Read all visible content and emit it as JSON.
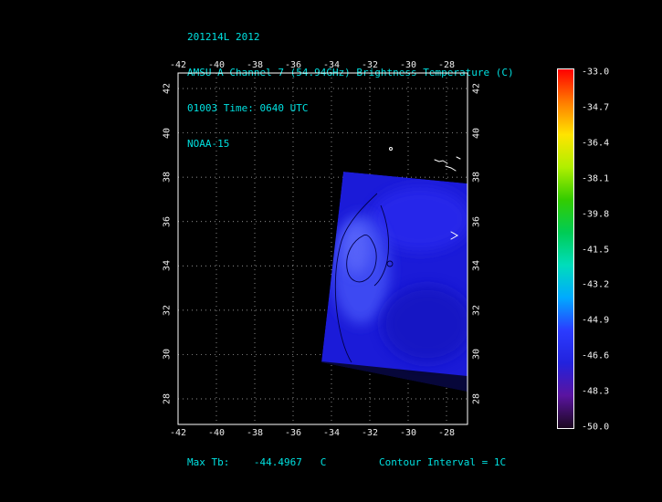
{
  "header": {
    "line1": "201214L 2012",
    "line2": "AMSU-A Channel 7 (54.94GHz) Brightness Temperature (C)",
    "line3": "01003 Time: 0640 UTC",
    "line4": "NOAA-15"
  },
  "axes": {
    "x_ticks": [
      "-42",
      "-40",
      "-38",
      "-36",
      "-34",
      "-32",
      "-30",
      "-28"
    ],
    "y_ticks": [
      "42",
      "40",
      "38",
      "36",
      "34",
      "32",
      "30",
      "28"
    ]
  },
  "colorbar": {
    "labels": [
      "-33.0",
      "-34.7",
      "-36.4",
      "-38.1",
      "-39.8",
      "-41.5",
      "-43.2",
      "-44.9",
      "-46.6",
      "-48.3",
      "-50.0"
    ],
    "stops": [
      "#ff0000",
      "#ff7b00",
      "#ffe400",
      "#b0ef00",
      "#33cc00",
      "#00cc55",
      "#00ddbb",
      "#00aaff",
      "#2b3cff",
      "#2222dd",
      "#5a14a0",
      "#1c0820"
    ],
    "units": "C"
  },
  "footer": {
    "max_tb": "Max Tb:    -44.4967   C",
    "contour": "Contour Interval = 1C"
  },
  "chart_data": {
    "type": "heatmap",
    "title": "AMSU-A Channel 7 (54.94GHz) Brightness Temperature (C)",
    "date_label": "201214L 2012",
    "pass_id": "01003",
    "time": "0640 UTC",
    "satellite": "NOAA-15",
    "x_tick_values": [
      -42,
      -40,
      -38,
      -36,
      -34,
      -32,
      -30,
      -28
    ],
    "y_tick_values": [
      42,
      40,
      38,
      36,
      34,
      32,
      30,
      28
    ],
    "x_range": [
      -42.0,
      -26.9
    ],
    "y_range": [
      27.4,
      42.5
    ],
    "colorbar_range": [
      -50.0,
      -33.0
    ],
    "colorbar_ticks": [
      -33.0,
      -34.7,
      -36.4,
      -38.1,
      -39.8,
      -41.5,
      -43.2,
      -44.9,
      -46.6,
      -48.3,
      -50.0
    ],
    "max_tb_c": -44.4967,
    "contour_interval_c": 1,
    "grid": true,
    "legend_position": "right",
    "swath_extent_approx": {
      "x": [
        -34.6,
        -26.9
      ],
      "y": [
        28.5,
        39.2
      ]
    },
    "swath_dominant_values_c": [
      -47.0,
      -44.5
    ]
  }
}
